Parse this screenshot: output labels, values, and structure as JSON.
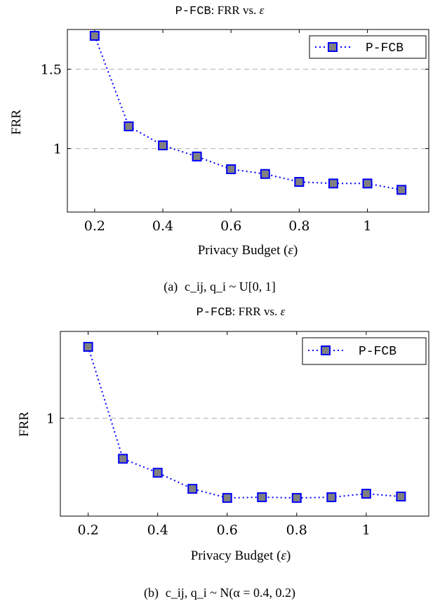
{
  "figure": {
    "panels": [
      {
        "title_method": "P-FCB",
        "title_rest": ": FRR vs. ",
        "title_symbol": "ε",
        "xlabel_main": "Privacy Budget (",
        "xlabel_symbol": "ε",
        "xlabel_end": ")",
        "ylabel": "FRR",
        "legend": "P-FCB",
        "caption_label": "(a)",
        "caption_math": "c_ij, q_i ~ U[0, 1]"
      },
      {
        "title_method": "P-FCB",
        "title_rest": ": FRR vs. ",
        "title_symbol": "ε",
        "xlabel_main": "Privacy Budget (",
        "xlabel_symbol": "ε",
        "xlabel_end": ")",
        "ylabel": "FRR",
        "legend": "P-FCB",
        "caption_label": "(b)",
        "caption_math": "c_ij, q_i ~ N(α = 0.4, 0.2)"
      }
    ]
  },
  "chart_data": [
    {
      "type": "line",
      "title": "P-FCB: FRR vs. ε",
      "xlabel": "Privacy Budget (ε)",
      "ylabel": "FRR",
      "x": [
        0.2,
        0.3,
        0.4,
        0.5,
        0.6,
        0.7,
        0.8,
        0.9,
        1.0,
        1.1
      ],
      "series": [
        {
          "name": "P-FCB",
          "values": [
            1.71,
            1.14,
            1.02,
            0.95,
            0.87,
            0.84,
            0.79,
            0.78,
            0.78,
            0.74
          ]
        }
      ],
      "xlim": [
        0.12,
        1.18
      ],
      "ylim": [
        0.6,
        1.75
      ],
      "xticks": [
        0.2,
        0.4,
        0.6,
        0.8,
        1.0
      ],
      "xtick_labels": [
        "0.2",
        "0.4",
        "0.6",
        "0.8",
        "1"
      ],
      "yticks": [
        1.0,
        1.5
      ],
      "ytick_labels": [
        "1",
        "1.5"
      ],
      "grid": "horizontal dashed",
      "legend_position": "top-right",
      "line_color": "#0000ff",
      "line_style": "dotted",
      "marker": "square",
      "marker_fill": "#808080"
    },
    {
      "type": "line",
      "title": "P-FCB: FRR vs. ε",
      "xlabel": "Privacy Budget (ε)",
      "ylabel": "FRR",
      "x": [
        0.2,
        0.3,
        0.4,
        0.5,
        0.6,
        0.7,
        0.8,
        0.9,
        1.0,
        1.1
      ],
      "series": [
        {
          "name": "P-FCB",
          "values": [
            1.51,
            0.71,
            0.61,
            0.495,
            0.43,
            0.435,
            0.43,
            0.435,
            0.46,
            0.44
          ]
        }
      ],
      "xlim": [
        0.12,
        1.18
      ],
      "ylim": [
        0.3,
        1.62
      ],
      "xticks": [
        0.2,
        0.4,
        0.6,
        0.8,
        1.0
      ],
      "xtick_labels": [
        "0.2",
        "0.4",
        "0.6",
        "0.8",
        "1"
      ],
      "yticks": [
        1.0
      ],
      "ytick_labels": [
        "1"
      ],
      "grid": "horizontal dashed",
      "legend_position": "top-right",
      "line_color": "#0000ff",
      "line_style": "dotted",
      "marker": "square",
      "marker_fill": "#808080"
    }
  ]
}
